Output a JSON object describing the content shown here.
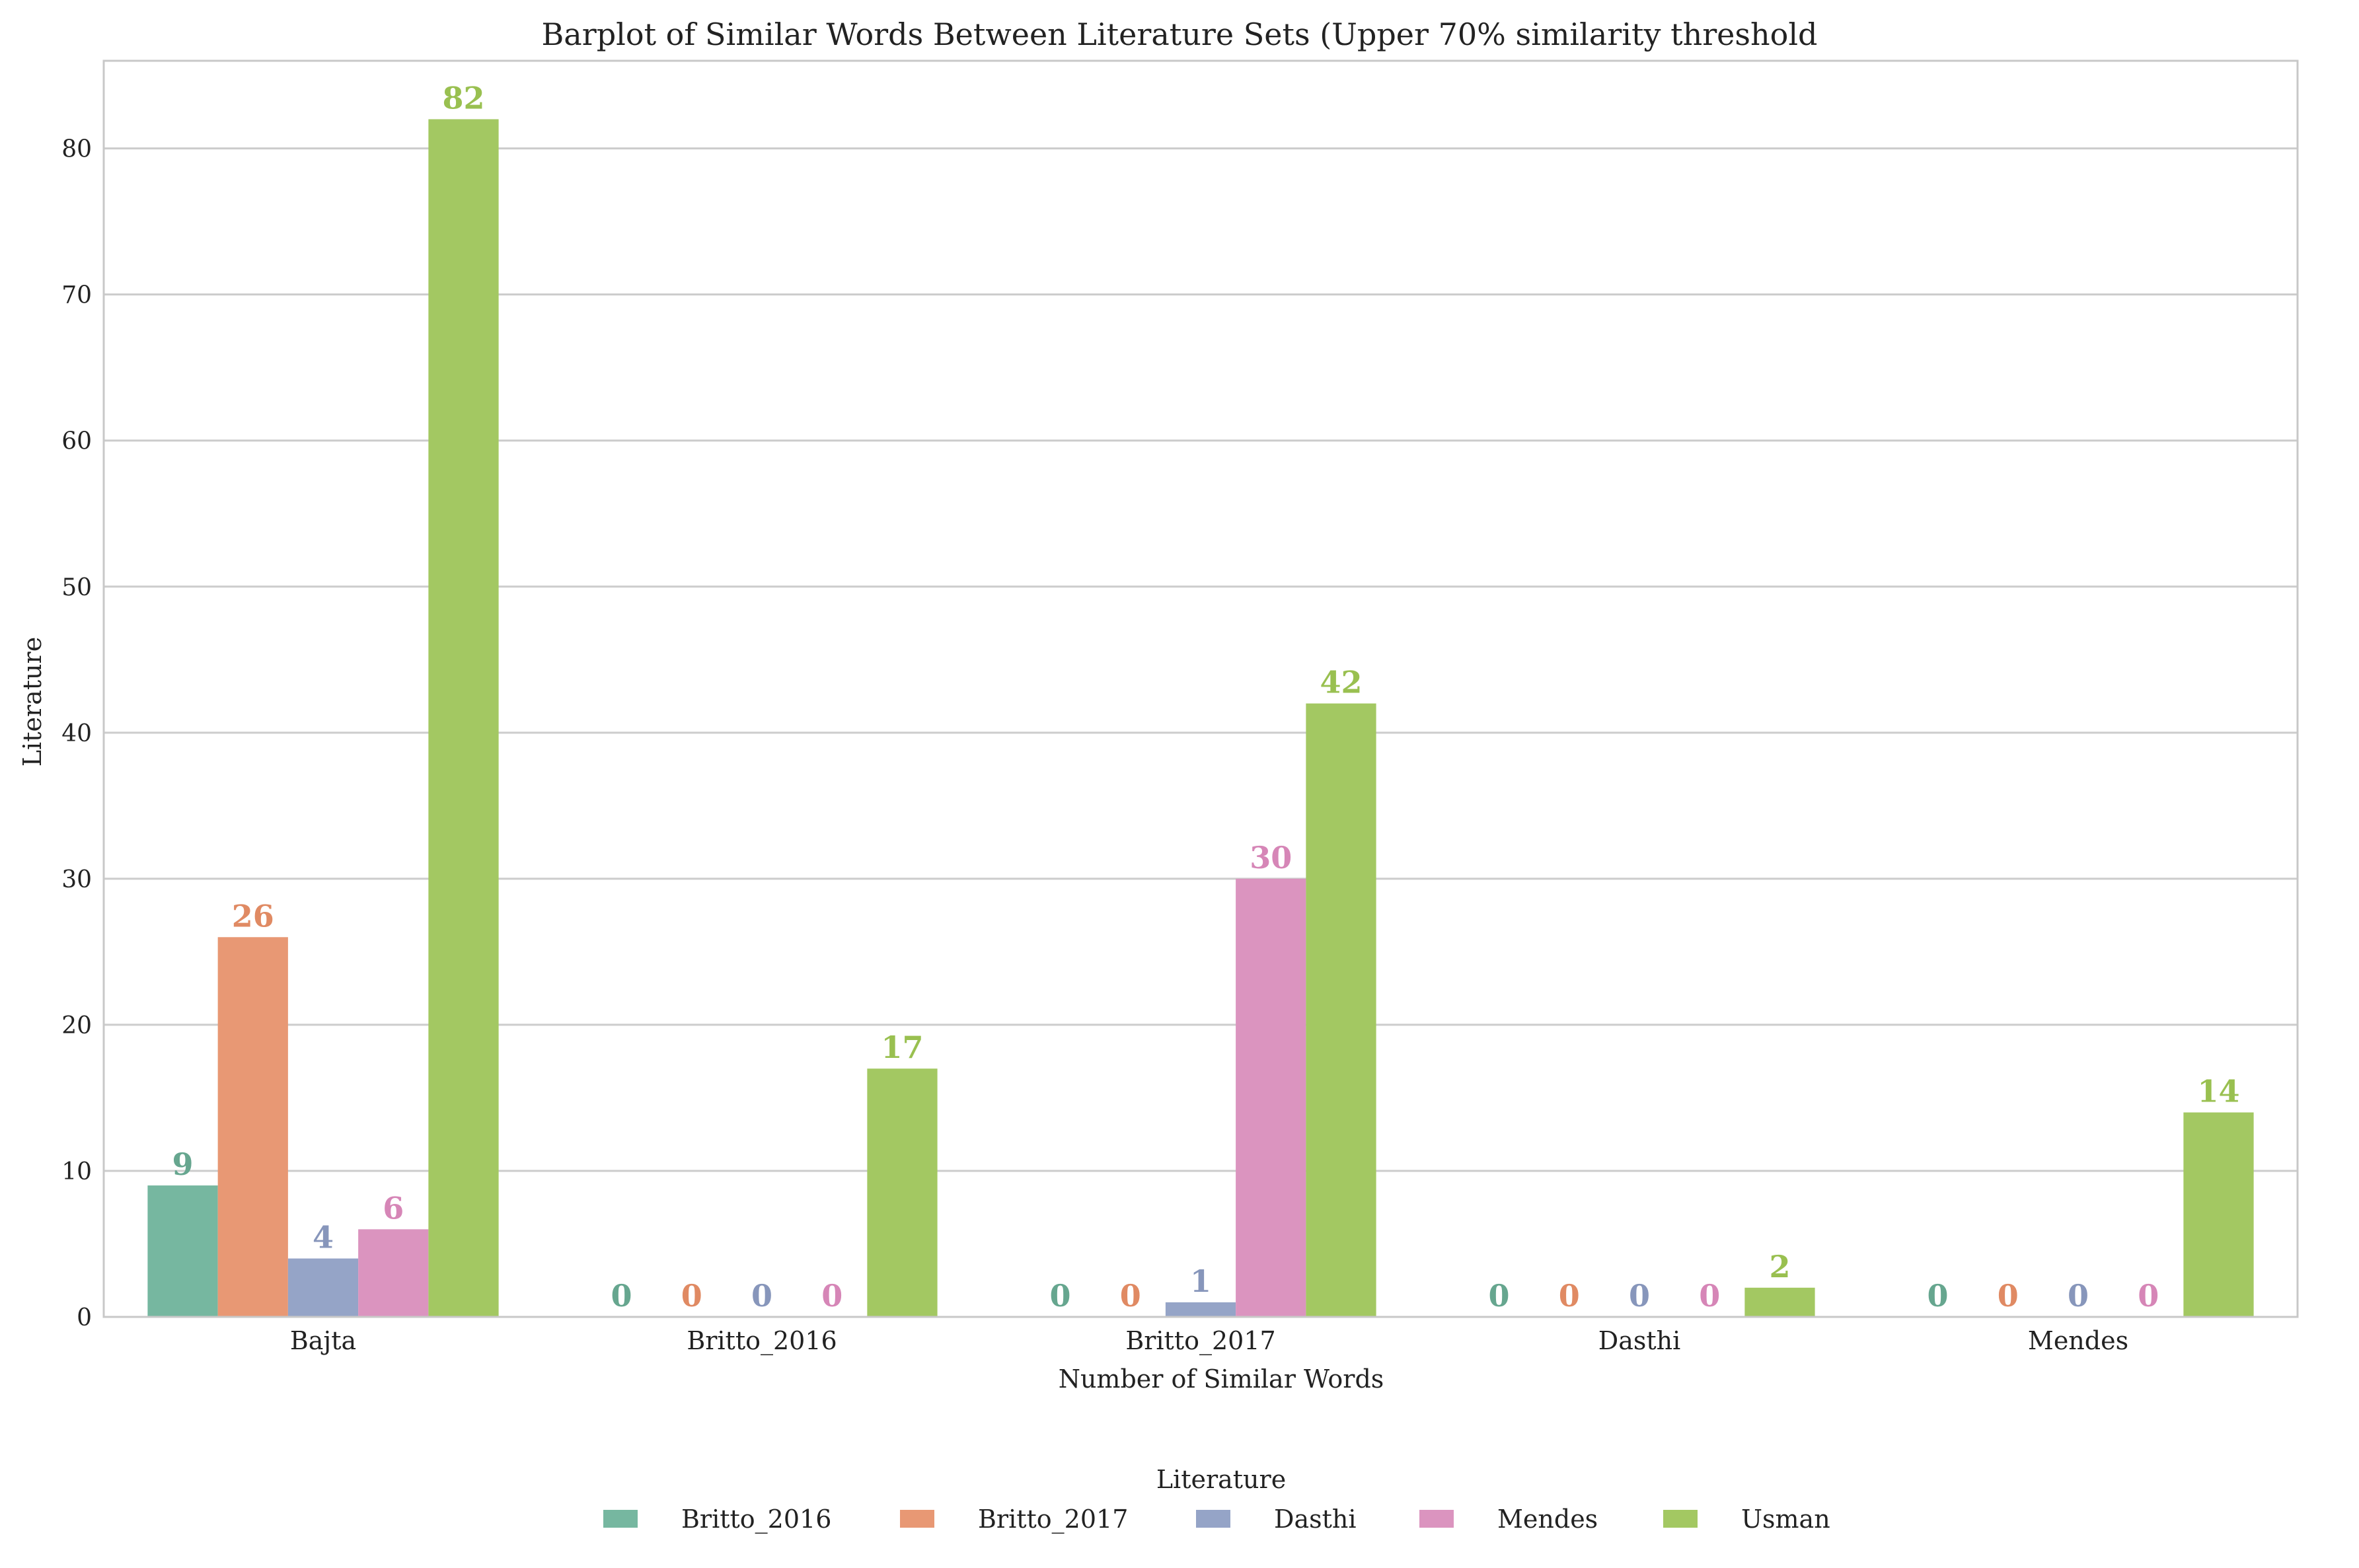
{
  "chart_data": {
    "type": "bar",
    "title": "Barplot of Similar Words Between Literature Sets (Upper 70% similarity threshold",
    "xlabel": "Number of Similar Words",
    "ylabel": "Literature",
    "categories": [
      "Bajta",
      "Britto_2016",
      "Britto_2017",
      "Dasthi",
      "Mendes"
    ],
    "ylim": [
      0,
      86
    ],
    "yticks": [
      0,
      10,
      20,
      30,
      40,
      50,
      60,
      70,
      80
    ],
    "grid": "horizontal",
    "legend": {
      "title": "Literature",
      "placement": "bottom-center"
    },
    "series": [
      {
        "name": "Britto_2016",
        "color": "#76b7a0",
        "label_color": "#66a68f",
        "values": [
          9,
          0,
          0,
          0,
          0
        ]
      },
      {
        "name": "Britto_2017",
        "color": "#e89874",
        "label_color": "#e08a63",
        "values": [
          26,
          0,
          0,
          0,
          0
        ]
      },
      {
        "name": "Dasthi",
        "color": "#95a4c7",
        "label_color": "#8796bb",
        "values": [
          4,
          0,
          1,
          0,
          0
        ]
      },
      {
        "name": "Mendes",
        "color": "#db94bf",
        "label_color": "#d686b7",
        "values": [
          6,
          0,
          30,
          0,
          0
        ]
      },
      {
        "name": "Usman",
        "color": "#a3c862",
        "label_color": "#99c050",
        "values": [
          82,
          17,
          42,
          2,
          14
        ]
      }
    ]
  }
}
